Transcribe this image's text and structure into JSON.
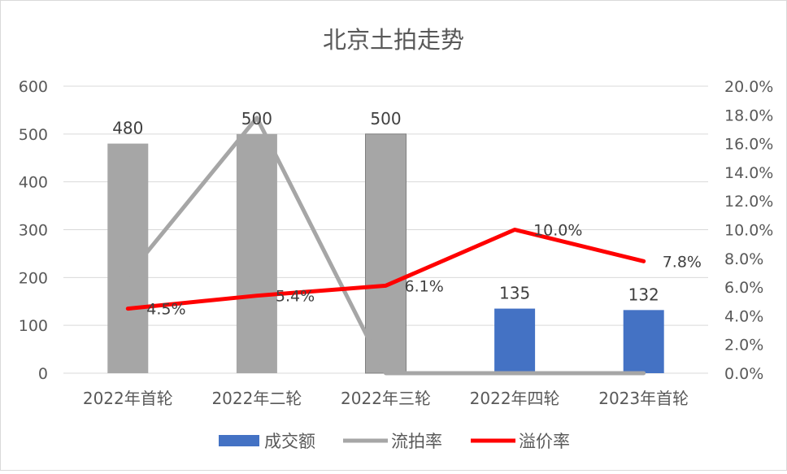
{
  "chart_data": {
    "type": "bar",
    "title": "北京土拍走势",
    "categories": [
      "2022年首轮",
      "2022年二轮",
      "2022年三轮",
      "2022年四轮",
      "2023年首轮"
    ],
    "ylim_left": [
      0,
      600
    ],
    "ylim_right": [
      0,
      0.2
    ],
    "left_ticks": [
      "0",
      "100",
      "200",
      "300",
      "400",
      "500",
      "600"
    ],
    "right_ticks": [
      "0.0%",
      "2.0%",
      "4.0%",
      "6.0%",
      "8.0%",
      "10.0%",
      "12.0%",
      "14.0%",
      "16.0%",
      "18.0%",
      "20.0%"
    ],
    "grid": true,
    "legend_position": "bottom",
    "bar_colors": [
      "#a6a6a6",
      "#a6a6a6",
      "#a6a6a6",
      "#4472c4",
      "#4472c4"
    ],
    "series": [
      {
        "name": "成交额",
        "kind": "bar",
        "axis": "left",
        "color": "#4472c4",
        "values": [
          480,
          500,
          500,
          135,
          132
        ],
        "labels": [
          "480",
          "500",
          "500",
          "135",
          "132"
        ]
      },
      {
        "name": "流拍率",
        "kind": "line",
        "axis": "right",
        "color": "#a6a6a6",
        "values": [
          0.068,
          0.178,
          0.0,
          0.0,
          0.0
        ]
      },
      {
        "name": "溢价率",
        "kind": "line",
        "axis": "right",
        "color": "#ff0000",
        "values": [
          0.045,
          0.054,
          0.061,
          0.1,
          0.078
        ],
        "labels": [
          "4.5%",
          "5.4%",
          "6.1%",
          "10.0%",
          "7.8%"
        ]
      }
    ]
  }
}
